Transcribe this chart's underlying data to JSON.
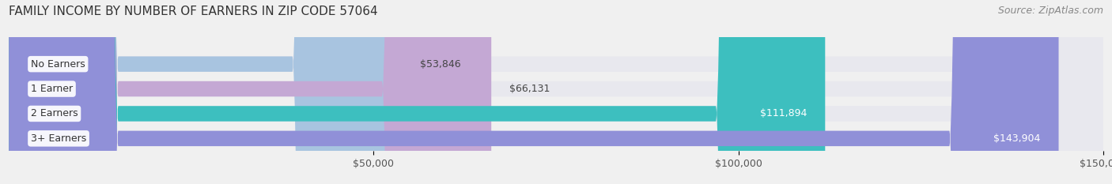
{
  "title": "FAMILY INCOME BY NUMBER OF EARNERS IN ZIP CODE 57064",
  "source": "Source: ZipAtlas.com",
  "categories": [
    "No Earners",
    "1 Earner",
    "2 Earners",
    "3+ Earners"
  ],
  "values": [
    53846,
    66131,
    111894,
    143904
  ],
  "bar_colors": [
    "#a8c4e0",
    "#c4a8d4",
    "#3dbfbf",
    "#9090d8"
  ],
  "label_colors": [
    "#555555",
    "#555555",
    "#ffffff",
    "#ffffff"
  ],
  "value_labels": [
    "$53,846",
    "$66,131",
    "$111,894",
    "$143,904"
  ],
  "xlim": [
    0,
    150000
  ],
  "xticks": [
    50000,
    100000,
    150000
  ],
  "xtick_labels": [
    "$50,000",
    "$100,000",
    "$150,000"
  ],
  "background_color": "#f0f0f0",
  "bar_background_color": "#e8e8ee",
  "title_fontsize": 11,
  "source_fontsize": 9,
  "bar_label_fontsize": 9,
  "value_label_fontsize": 9,
  "tick_fontsize": 9,
  "bar_height": 0.62
}
